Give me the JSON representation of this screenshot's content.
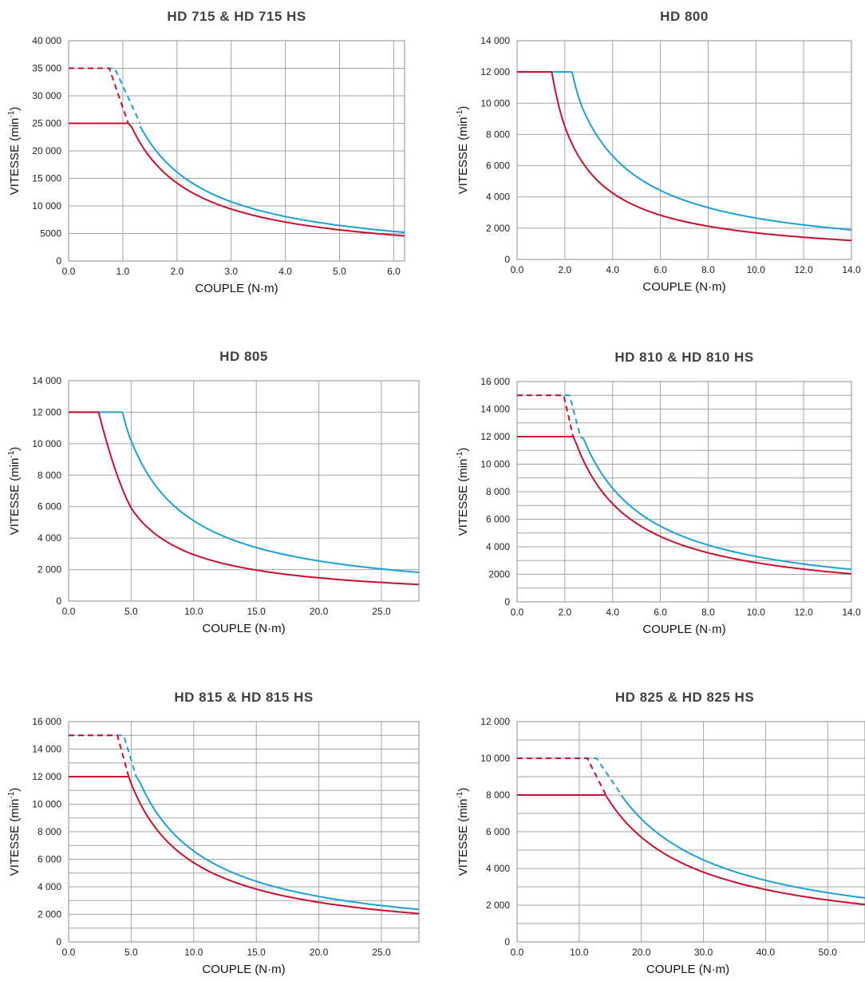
{
  "colors": {
    "series_a": "#1ba1d8",
    "series_b": "#c8102e",
    "grid": "#a6a6a6"
  },
  "chart_data": [
    {
      "type": "line",
      "title": "HD 715 & HD 715 HS",
      "xlabel": "COUPLE (N·m)",
      "ylabel": "VITESSE (min-1)",
      "xlim": [
        0,
        6.2
      ],
      "ylim": [
        0,
        40000
      ],
      "xticks": [
        0,
        1,
        2,
        3,
        4,
        5,
        6
      ],
      "xtick_labels": [
        "0.0",
        "1.0",
        "2.0",
        "3.0",
        "4.0",
        "5.0",
        "6.0"
      ],
      "yticks": [
        0,
        5000,
        10000,
        15000,
        20000,
        25000,
        30000,
        35000,
        40000
      ],
      "ytick_labels": [
        "0",
        "5000",
        "10 000",
        "15 000",
        "20 000",
        "25 000",
        "30 000",
        "35 000",
        "40 000"
      ],
      "minor_y": [],
      "series": [
        {
          "color": "#1ba1d8",
          "dashed": [
            [
              0,
              35000
            ],
            [
              0.85,
              35000
            ],
            [
              1.32,
              25000
            ]
          ],
          "flat": [],
          "curve": [
            1.32,
            6.2
          ],
          "k": 32300
        },
        {
          "color": "#c8102e",
          "dashed": [
            [
              0,
              35000
            ],
            [
              0.75,
              35000
            ],
            [
              1.1,
              25000
            ]
          ],
          "flat": [
            [
              0,
              25000
            ],
            [
              1.1,
              25000
            ]
          ],
          "curve": [
            1.1,
            6.2
          ],
          "k": 28300
        }
      ]
    },
    {
      "type": "line",
      "title": "HD 800",
      "xlabel": "COUPLE (N·m)",
      "ylabel": "VITESSE (min-1)",
      "xlim": [
        0,
        14
      ],
      "ylim": [
        0,
        14000
      ],
      "xticks": [
        0,
        2,
        4,
        6,
        8,
        10,
        12,
        14
      ],
      "xtick_labels": [
        "0.0",
        "2.0",
        "4.0",
        "6.0",
        "8.0",
        "10.0",
        "12.0",
        "14.0"
      ],
      "yticks": [
        0,
        2000,
        4000,
        6000,
        8000,
        10000,
        12000,
        14000
      ],
      "ytick_labels": [
        "0",
        "2 000",
        "4 000",
        "6 000",
        "8 000",
        "10 000",
        "12 000",
        "14 000"
      ],
      "minor_y": [],
      "series": [
        {
          "color": "#1ba1d8",
          "dashed": [],
          "flat": [
            [
              0,
              12000
            ],
            [
              2.3,
              12000
            ]
          ],
          "curve": [
            2.3,
            14
          ],
          "k": 26500,
          "x0": 2.3,
          "y0": 12000,
          "k_start": 2.8
        },
        {
          "color": "#c8102e",
          "dashed": [],
          "flat": [
            [
              0,
              12000
            ],
            [
              1.45,
              12000
            ]
          ],
          "curve": [
            1.45,
            14
          ],
          "k": 17000,
          "x0": 1.45,
          "y0": 12000,
          "k_start": 2.0
        }
      ]
    },
    {
      "type": "line",
      "title": "HD 805",
      "xlabel": "COUPLE (N·m)",
      "ylabel": "VITESSE (min-1)",
      "xlim": [
        0,
        28
      ],
      "ylim": [
        0,
        14000
      ],
      "xticks": [
        0,
        5,
        10,
        15,
        20,
        25
      ],
      "xtick_labels": [
        "0.0",
        "5.0",
        "10.0",
        "15.0",
        "20.0",
        "25.0"
      ],
      "yticks": [
        0,
        2000,
        4000,
        6000,
        8000,
        10000,
        12000,
        14000
      ],
      "ytick_labels": [
        "0",
        "2 000",
        "4 000",
        "6 000",
        "8 000",
        "10 000",
        "12 000",
        "14 000"
      ],
      "minor_y": [],
      "series": [
        {
          "color": "#1ba1d8",
          "dashed": [],
          "flat": [
            [
              0,
              12000
            ],
            [
              4.3,
              12000
            ]
          ],
          "curve": [
            4.3,
            28
          ],
          "k": 51000,
          "x0": 4.3,
          "y0": 12000,
          "k_start": 5.2
        },
        {
          "color": "#c8102e",
          "dashed": [],
          "flat": [
            [
              0,
              12000
            ],
            [
              2.4,
              12000
            ]
          ],
          "curve": [
            2.4,
            28
          ],
          "k": 29500,
          "x0": 2.4,
          "y0": 12000,
          "k_start": 5.0
        }
      ]
    },
    {
      "type": "line",
      "title": "HD 810 & HD 810 HS",
      "xlabel": "COUPLE (N·m)",
      "ylabel": "VITESSE (min-1)",
      "xlim": [
        0,
        14
      ],
      "ylim": [
        0,
        16000
      ],
      "xticks": [
        0,
        2,
        4,
        6,
        8,
        10,
        12,
        14
      ],
      "xtick_labels": [
        "0.0",
        "2.0",
        "4.0",
        "6.0",
        "8.0",
        "10.0",
        "12.0",
        "14.0"
      ],
      "yticks": [
        0,
        2000,
        4000,
        6000,
        8000,
        10000,
        12000,
        14000,
        16000
      ],
      "ytick_labels": [
        "0",
        "2000",
        "4 000",
        "6 000",
        "8 000",
        "10 000",
        "12 000",
        "14 000",
        "16 000"
      ],
      "minor_y": [
        1000,
        3000,
        5000,
        7000,
        9000,
        11000,
        13000,
        15000
      ],
      "series": [
        {
          "color": "#1ba1d8",
          "dashed": [
            [
              0,
              15000
            ],
            [
              2.2,
              15000
            ],
            [
              2.65,
              12000
            ]
          ],
          "flat": [],
          "curve": [
            2.65,
            14
          ],
          "k": 33000
        },
        {
          "color": "#c8102e",
          "dashed": [
            [
              0,
              15000
            ],
            [
              1.95,
              15000
            ],
            [
              2.35,
              12000
            ]
          ],
          "flat": [
            [
              0,
              12000
            ],
            [
              2.35,
              12000
            ]
          ],
          "curve": [
            2.35,
            14
          ],
          "k": 28500
        }
      ]
    },
    {
      "type": "line",
      "title": "HD 815 & HD 815 HS",
      "xlabel": "COUPLE (N·m)",
      "ylabel": "VITESSE (min-1)",
      "xlim": [
        0,
        28
      ],
      "ylim": [
        0,
        16000
      ],
      "xticks": [
        0,
        5,
        10,
        15,
        20,
        25
      ],
      "xtick_labels": [
        "0.0",
        "5.0",
        "10.0",
        "15.0",
        "20.0",
        "25.0"
      ],
      "yticks": [
        0,
        2000,
        4000,
        6000,
        8000,
        10000,
        12000,
        14000,
        16000
      ],
      "ytick_labels": [
        "0",
        "2 000",
        "4 000",
        "6 000",
        "8 000",
        "10 000",
        "12 000",
        "14 000",
        "16 000"
      ],
      "minor_y": [
        1000,
        3000,
        5000,
        7000,
        9000,
        11000,
        13000,
        15000
      ],
      "series": [
        {
          "color": "#1ba1d8",
          "dashed": [
            [
              0,
              15000
            ],
            [
              4.4,
              15000
            ],
            [
              5.4,
              12000
            ]
          ],
          "flat": [],
          "curve": [
            5.4,
            28
          ],
          "k": 66000
        },
        {
          "color": "#c8102e",
          "dashed": [
            [
              0,
              15000
            ],
            [
              3.9,
              15000
            ],
            [
              4.8,
              12000
            ]
          ],
          "flat": [
            [
              0,
              12000
            ],
            [
              4.8,
              12000
            ]
          ],
          "curve": [
            4.8,
            28
          ],
          "k": 57500
        }
      ]
    },
    {
      "type": "line",
      "title": "HD 825 & HD 825 HS",
      "xlabel": "COUPLE (N·m)",
      "ylabel": "VITESSE (min-1)",
      "xlim": [
        0,
        56
      ],
      "ylim": [
        0,
        12000
      ],
      "xticks": [
        0,
        10,
        20,
        30,
        40,
        50
      ],
      "xtick_labels": [
        "0.0",
        "10.0",
        "20.0",
        "30.0",
        "40.0",
        "50.0"
      ],
      "yticks": [
        0,
        2000,
        4000,
        6000,
        8000,
        10000,
        12000
      ],
      "ytick_labels": [
        "0",
        "2 000",
        "4 000",
        "6 000",
        "8 000",
        "10 000",
        "12 000"
      ],
      "minor_y": [
        1000,
        3000,
        5000,
        7000,
        9000,
        11000
      ],
      "series": [
        {
          "color": "#1ba1d8",
          "dashed": [
            [
              0,
              10000
            ],
            [
              12.8,
              10000
            ],
            [
              16.8,
              8000
            ]
          ],
          "flat": [],
          "curve": [
            16.8,
            56
          ],
          "k": 134000
        },
        {
          "color": "#c8102e",
          "dashed": [
            [
              0,
              10000
            ],
            [
              11.3,
              10000
            ],
            [
              14.3,
              8000
            ]
          ],
          "flat": [
            [
              0,
              8000
            ],
            [
              14.3,
              8000
            ]
          ],
          "curve": [
            14.3,
            56
          ],
          "k": 114000
        }
      ]
    }
  ]
}
